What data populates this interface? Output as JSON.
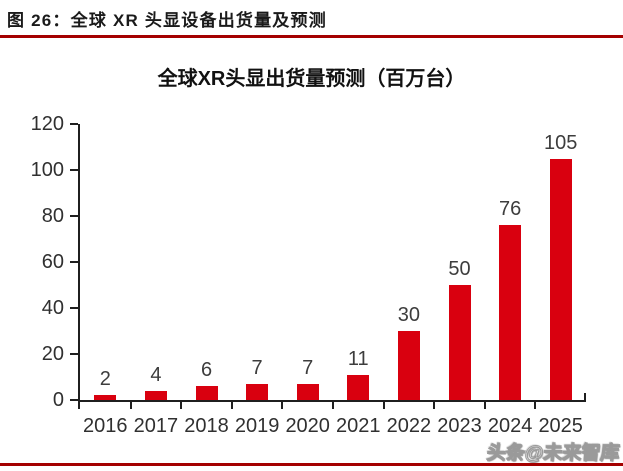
{
  "header": {
    "title": "图 26：全球 XR 头显设备出货量及预测"
  },
  "chart_data": {
    "type": "bar",
    "title": "全球XR头显出货量预测（百万台）",
    "categories": [
      "2016",
      "2017",
      "2018",
      "2019",
      "2020",
      "2021",
      "2022",
      "2023",
      "2024",
      "2025"
    ],
    "values": [
      2,
      4,
      6,
      7,
      7,
      11,
      30,
      50,
      76,
      105
    ],
    "xlabel": "",
    "ylabel": "",
    "ylim": [
      0,
      120
    ],
    "yticks": [
      0,
      20,
      40,
      60,
      80,
      100,
      120
    ],
    "grid": false,
    "legend": false,
    "data_labels": true
  },
  "watermark": {
    "text": "头条@未来智库"
  },
  "colors": {
    "bar": "#D9000F",
    "rule": "#A40000",
    "axis": "#1f1f1f",
    "label": "#3d3d3d"
  }
}
